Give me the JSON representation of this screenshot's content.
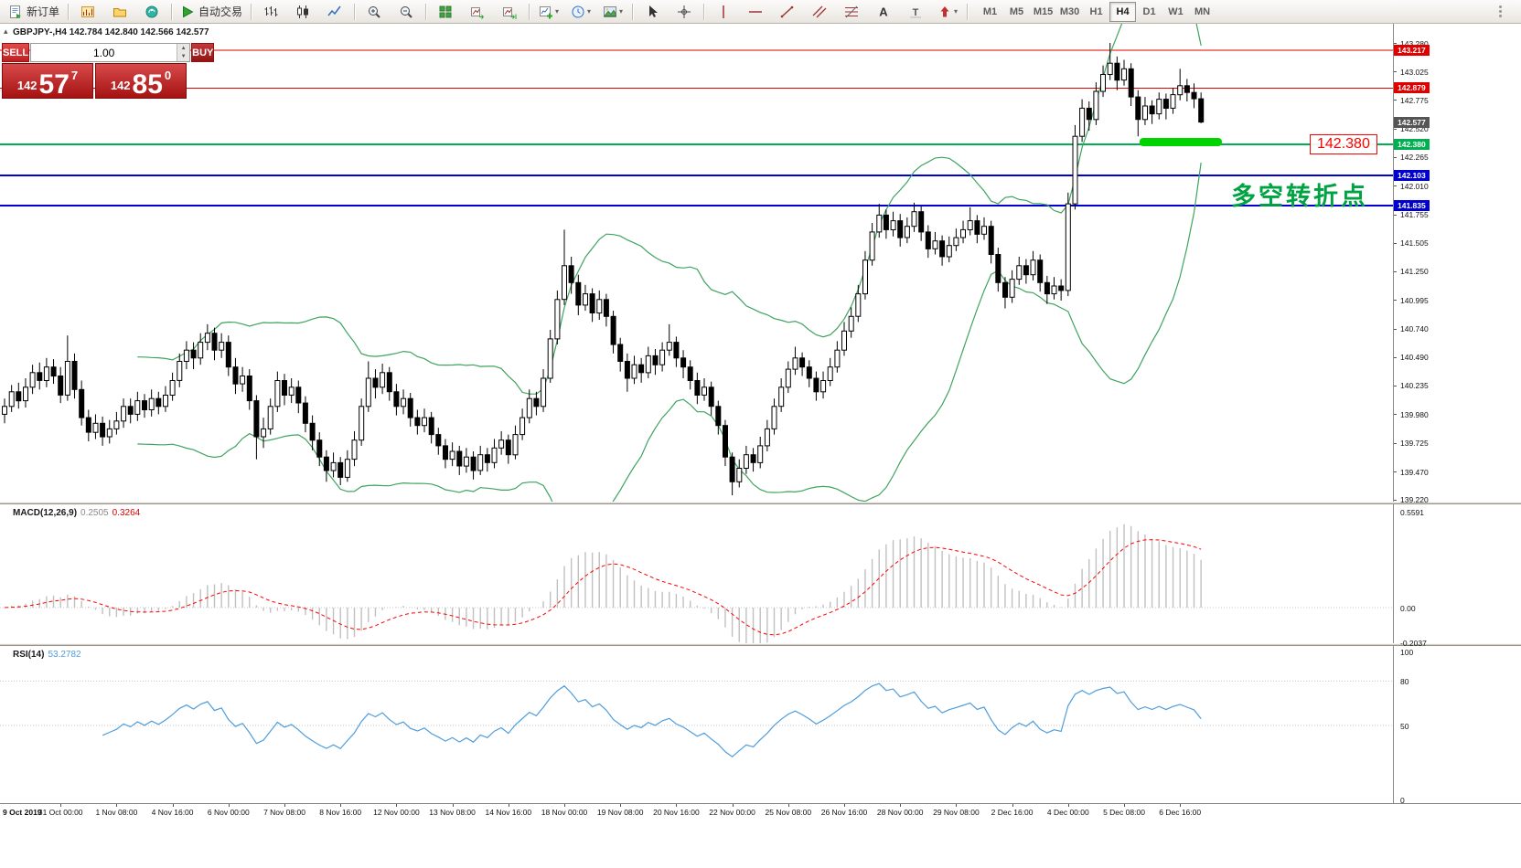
{
  "toolbar": {
    "new_order": "新订单",
    "auto_trading": "自动交易",
    "timeframes": [
      "M1",
      "M5",
      "M15",
      "M30",
      "H1",
      "H4",
      "D1",
      "W1",
      "MN"
    ],
    "active_timeframe": "H4"
  },
  "trade_panel": {
    "sell_label": "SELL",
    "buy_label": "BUY",
    "volume": "1.00",
    "sell_price": {
      "prefix": "142",
      "big": "57",
      "sup": "7"
    },
    "buy_price": {
      "prefix": "142",
      "big": "85",
      "sup": "0"
    }
  },
  "chart": {
    "header": "GBPJPY-,H4  142.784 142.840 142.566 142.577",
    "price_ticks": [
      "143.280",
      "143.025",
      "142.775",
      "142.520",
      "142.265",
      "142.010",
      "141.755",
      "141.505",
      "141.250",
      "140.995",
      "140.740",
      "140.490",
      "140.235",
      "139.980",
      "139.725",
      "139.470",
      "139.220"
    ],
    "badges": [
      {
        "label": "143.217",
        "color": "#e00000"
      },
      {
        "label": "142.879",
        "color": "#e00000"
      },
      {
        "label": "142.577",
        "color": "#555555"
      },
      {
        "label": "142.380",
        "color": "#00b050"
      },
      {
        "label": "142.103",
        "color": "#0000d0"
      },
      {
        "label": "141.835",
        "color": "#0000d0"
      }
    ],
    "hlines": [
      {
        "price": 143.217,
        "color": "#e00000",
        "width": 1
      },
      {
        "price": 142.879,
        "color": "#e00000",
        "width": 1
      },
      {
        "price": 142.38,
        "color": "#00b050",
        "width": 2
      },
      {
        "price": 142.103,
        "color": "#0000d0",
        "width": 2
      },
      {
        "price": 141.835,
        "color": "#0000d0",
        "width": 2
      }
    ],
    "price_label_box": "142.380",
    "annotation": "多空转折点",
    "colors": {
      "band": "#3fa35f",
      "bull": "#ffffff",
      "bear": "#000000",
      "outline": "#000000",
      "highlight": "#00d400",
      "annotation": "#00a342",
      "label": "#ff0000"
    }
  },
  "macd": {
    "title": "MACD(12,26,9)",
    "value1": "0.2505",
    "value2": "0.3264",
    "scale_top": "0.5591",
    "scale_zero": "0.00",
    "scale_bottom": "-0.2037",
    "hist_color": "#c0c0c0",
    "signal_color": "#ff0000"
  },
  "rsi": {
    "title": "RSI(14)",
    "value": "53.2782",
    "levels": [
      "100",
      "80",
      "50",
      "0"
    ],
    "line_color": "#4e9ddd"
  },
  "time_axis": {
    "first": "9 Oct 2019",
    "labels": [
      "31 Oct 00:00",
      "1 Nov 08:00",
      "4 Nov 16:00",
      "6 Nov 00:00",
      "7 Nov 08:00",
      "8 Nov 16:00",
      "12 Nov 00:00",
      "13 Nov 08:00",
      "14 Nov 16:00",
      "18 Nov 00:00",
      "19 Nov 08:00",
      "20 Nov 16:00",
      "22 Nov 00:00",
      "25 Nov 08:00",
      "26 Nov 16:00",
      "28 Nov 00:00",
      "29 Nov 08:00",
      "2 Dec 16:00",
      "4 Dec 00:00",
      "5 Dec 08:00",
      "6 Dec 16:00"
    ]
  },
  "chart_data": {
    "type": "candlestick",
    "symbol": "GBPJPY-",
    "timeframe": "H4",
    "ylim": [
      139.22,
      143.28
    ],
    "label_every": 8,
    "indicators": [
      "Bollinger Bands(20,2)",
      "MACD(12,26,9)",
      "RSI(14)"
    ],
    "ohlc": [
      [
        139.98,
        140.12,
        139.9,
        140.05
      ],
      [
        140.05,
        140.24,
        140.0,
        140.18
      ],
      [
        140.18,
        140.26,
        140.03,
        140.1
      ],
      [
        140.1,
        140.3,
        140.04,
        140.22
      ],
      [
        140.22,
        140.42,
        140.16,
        140.35
      ],
      [
        140.35,
        140.44,
        140.2,
        140.28
      ],
      [
        140.28,
        140.48,
        140.22,
        140.4
      ],
      [
        140.4,
        140.47,
        140.25,
        140.32
      ],
      [
        140.32,
        140.4,
        140.08,
        140.15
      ],
      [
        140.15,
        140.68,
        140.1,
        140.45
      ],
      [
        140.45,
        140.52,
        140.12,
        140.2
      ],
      [
        140.2,
        140.28,
        139.88,
        139.95
      ],
      [
        139.95,
        140.02,
        139.74,
        139.82
      ],
      [
        139.82,
        139.98,
        139.76,
        139.9
      ],
      [
        139.9,
        139.96,
        139.7,
        139.78
      ],
      [
        139.78,
        139.93,
        139.72,
        139.85
      ],
      [
        139.85,
        140.0,
        139.8,
        139.92
      ],
      [
        139.92,
        140.12,
        139.86,
        140.05
      ],
      [
        140.05,
        140.12,
        139.9,
        139.98
      ],
      [
        139.98,
        140.18,
        139.92,
        140.1
      ],
      [
        140.1,
        140.16,
        139.95,
        140.02
      ],
      [
        140.02,
        140.2,
        139.96,
        140.12
      ],
      [
        140.12,
        140.18,
        139.98,
        140.05
      ],
      [
        140.05,
        140.23,
        140.0,
        140.15
      ],
      [
        140.15,
        140.35,
        140.1,
        140.28
      ],
      [
        140.28,
        140.52,
        140.22,
        140.45
      ],
      [
        140.45,
        140.63,
        140.38,
        140.55
      ],
      [
        140.55,
        140.62,
        140.38,
        140.48
      ],
      [
        140.48,
        140.7,
        140.42,
        140.62
      ],
      [
        140.62,
        140.78,
        140.55,
        140.7
      ],
      [
        140.7,
        140.75,
        140.46,
        140.55
      ],
      [
        140.55,
        140.7,
        140.48,
        140.62
      ],
      [
        140.62,
        140.68,
        140.32,
        140.4
      ],
      [
        140.4,
        140.48,
        140.16,
        140.25
      ],
      [
        140.25,
        140.4,
        140.18,
        140.32
      ],
      [
        140.32,
        140.38,
        140.02,
        140.1
      ],
      [
        140.1,
        140.15,
        139.58,
        139.78
      ],
      [
        139.78,
        139.95,
        139.68,
        139.85
      ],
      [
        139.85,
        140.12,
        139.8,
        140.05
      ],
      [
        140.05,
        140.36,
        140.0,
        140.28
      ],
      [
        140.28,
        140.34,
        140.06,
        140.15
      ],
      [
        140.15,
        140.3,
        140.08,
        140.22
      ],
      [
        140.22,
        140.28,
        139.99,
        140.08
      ],
      [
        140.08,
        140.14,
        139.82,
        139.9
      ],
      [
        139.9,
        139.97,
        139.66,
        139.75
      ],
      [
        139.75,
        139.82,
        139.52,
        139.6
      ],
      [
        139.6,
        139.66,
        139.38,
        139.48
      ],
      [
        139.48,
        139.64,
        139.42,
        139.55
      ],
      [
        139.55,
        139.6,
        139.35,
        139.42
      ],
      [
        139.42,
        139.66,
        139.38,
        139.58
      ],
      [
        139.58,
        139.83,
        139.52,
        139.75
      ],
      [
        139.75,
        140.12,
        139.7,
        140.05
      ],
      [
        140.05,
        140.45,
        140.0,
        140.3
      ],
      [
        140.3,
        140.38,
        140.12,
        140.22
      ],
      [
        140.22,
        140.43,
        140.16,
        140.35
      ],
      [
        140.35,
        140.4,
        140.1,
        140.18
      ],
      [
        140.18,
        140.25,
        139.97,
        140.05
      ],
      [
        140.05,
        140.2,
        139.98,
        140.12
      ],
      [
        140.12,
        140.17,
        139.87,
        139.95
      ],
      [
        139.95,
        140.02,
        139.8,
        139.88
      ],
      [
        139.88,
        140.03,
        139.82,
        139.95
      ],
      [
        139.95,
        140.0,
        139.72,
        139.8
      ],
      [
        139.8,
        139.86,
        139.62,
        139.7
      ],
      [
        139.7,
        139.76,
        139.5,
        139.58
      ],
      [
        139.58,
        139.73,
        139.52,
        139.65
      ],
      [
        139.65,
        139.7,
        139.44,
        139.52
      ],
      [
        139.52,
        139.68,
        139.46,
        139.6
      ],
      [
        139.6,
        139.65,
        139.4,
        139.48
      ],
      [
        139.48,
        139.7,
        139.44,
        139.62
      ],
      [
        139.62,
        139.68,
        139.47,
        139.55
      ],
      [
        139.55,
        139.76,
        139.5,
        139.68
      ],
      [
        139.68,
        139.83,
        139.62,
        139.75
      ],
      [
        139.75,
        139.8,
        139.54,
        139.62
      ],
      [
        139.62,
        139.88,
        139.58,
        139.8
      ],
      [
        139.8,
        140.03,
        139.75,
        139.95
      ],
      [
        139.95,
        140.2,
        139.9,
        140.12
      ],
      [
        140.12,
        140.18,
        139.97,
        140.05
      ],
      [
        140.05,
        140.38,
        140.0,
        140.3
      ],
      [
        140.3,
        140.73,
        140.26,
        140.65
      ],
      [
        140.65,
        141.08,
        140.6,
        141.0
      ],
      [
        141.0,
        141.62,
        140.95,
        141.3
      ],
      [
        141.3,
        141.38,
        141.05,
        141.15
      ],
      [
        141.15,
        141.22,
        140.86,
        140.95
      ],
      [
        140.95,
        141.13,
        140.9,
        141.05
      ],
      [
        141.05,
        141.1,
        140.8,
        140.88
      ],
      [
        140.88,
        141.08,
        140.82,
        141.0
      ],
      [
        141.0,
        141.05,
        140.76,
        140.85
      ],
      [
        140.85,
        140.9,
        140.52,
        140.6
      ],
      [
        140.6,
        140.66,
        140.36,
        140.45
      ],
      [
        140.45,
        140.52,
        140.18,
        140.3
      ],
      [
        140.3,
        140.5,
        140.25,
        140.42
      ],
      [
        140.42,
        140.48,
        140.26,
        140.35
      ],
      [
        140.35,
        140.58,
        140.3,
        140.5
      ],
      [
        140.5,
        140.56,
        140.33,
        140.42
      ],
      [
        140.42,
        140.62,
        140.36,
        140.55
      ],
      [
        140.55,
        140.78,
        140.5,
        140.62
      ],
      [
        140.62,
        140.67,
        140.4,
        140.48
      ],
      [
        140.48,
        140.55,
        140.3,
        140.4
      ],
      [
        140.4,
        140.46,
        140.2,
        140.28
      ],
      [
        140.28,
        140.35,
        140.07,
        140.15
      ],
      [
        140.15,
        140.3,
        140.1,
        140.22
      ],
      [
        140.22,
        140.27,
        139.97,
        140.05
      ],
      [
        140.05,
        140.1,
        139.8,
        139.88
      ],
      [
        139.88,
        139.93,
        139.52,
        139.6
      ],
      [
        139.6,
        139.64,
        139.26,
        139.38
      ],
      [
        139.38,
        139.58,
        139.33,
        139.5
      ],
      [
        139.5,
        139.7,
        139.45,
        139.62
      ],
      [
        139.62,
        139.68,
        139.47,
        139.55
      ],
      [
        139.55,
        139.78,
        139.5,
        139.7
      ],
      [
        139.7,
        139.93,
        139.65,
        139.85
      ],
      [
        139.85,
        140.12,
        139.8,
        140.05
      ],
      [
        140.05,
        140.3,
        140.0,
        140.22
      ],
      [
        140.22,
        140.45,
        140.17,
        140.38
      ],
      [
        140.38,
        140.58,
        140.33,
        140.48
      ],
      [
        140.48,
        140.53,
        140.32,
        140.4
      ],
      [
        140.4,
        140.46,
        140.22,
        140.3
      ],
      [
        140.3,
        140.36,
        140.1,
        140.18
      ],
      [
        140.18,
        140.36,
        140.12,
        140.28
      ],
      [
        140.28,
        140.48,
        140.23,
        140.4
      ],
      [
        140.4,
        140.63,
        140.35,
        140.55
      ],
      [
        140.55,
        140.8,
        140.5,
        140.72
      ],
      [
        140.72,
        140.93,
        140.66,
        140.85
      ],
      [
        140.85,
        141.13,
        140.8,
        141.05
      ],
      [
        141.05,
        141.43,
        141.0,
        141.35
      ],
      [
        141.35,
        141.68,
        141.3,
        141.6
      ],
      [
        141.6,
        141.85,
        141.55,
        141.75
      ],
      [
        141.75,
        141.8,
        141.54,
        141.62
      ],
      [
        141.62,
        141.78,
        141.56,
        141.7
      ],
      [
        141.7,
        141.76,
        141.47,
        141.55
      ],
      [
        141.55,
        141.73,
        141.5,
        141.65
      ],
      [
        141.65,
        141.86,
        141.6,
        141.78
      ],
      [
        141.78,
        141.83,
        141.52,
        141.6
      ],
      [
        141.6,
        141.66,
        141.37,
        141.45
      ],
      [
        141.45,
        141.6,
        141.4,
        141.52
      ],
      [
        141.52,
        141.57,
        141.3,
        141.38
      ],
      [
        141.38,
        141.56,
        141.33,
        141.48
      ],
      [
        141.48,
        141.63,
        141.43,
        141.55
      ],
      [
        141.55,
        141.7,
        141.5,
        141.62
      ],
      [
        141.62,
        141.82,
        141.57,
        141.7
      ],
      [
        141.7,
        141.75,
        141.5,
        141.58
      ],
      [
        141.58,
        141.73,
        141.53,
        141.65
      ],
      [
        141.65,
        141.7,
        141.32,
        141.4
      ],
      [
        141.4,
        141.46,
        141.07,
        141.15
      ],
      [
        141.15,
        141.2,
        140.92,
        141.02
      ],
      [
        141.02,
        141.26,
        140.97,
        141.18
      ],
      [
        141.18,
        141.38,
        141.13,
        141.3
      ],
      [
        141.3,
        141.36,
        141.14,
        141.22
      ],
      [
        141.22,
        141.43,
        141.17,
        141.35
      ],
      [
        141.35,
        141.4,
        141.07,
        141.15
      ],
      [
        141.15,
        141.21,
        140.96,
        141.05
      ],
      [
        141.05,
        141.2,
        141.0,
        141.12
      ],
      [
        141.12,
        141.18,
        140.99,
        141.08
      ],
      [
        141.08,
        141.95,
        141.03,
        141.85
      ],
      [
        141.85,
        142.55,
        141.8,
        142.45
      ],
      [
        142.45,
        142.78,
        142.4,
        142.7
      ],
      [
        142.7,
        142.76,
        142.5,
        142.6
      ],
      [
        142.6,
        142.93,
        142.55,
        142.85
      ],
      [
        142.85,
        143.08,
        142.8,
        143.0
      ],
      [
        143.0,
        143.28,
        142.95,
        143.1
      ],
      [
        143.1,
        143.16,
        142.86,
        142.95
      ],
      [
        142.95,
        143.13,
        142.9,
        143.05
      ],
      [
        143.05,
        143.1,
        142.72,
        142.8
      ],
      [
        142.8,
        142.86,
        142.45,
        142.6
      ],
      [
        142.6,
        142.8,
        142.55,
        142.72
      ],
      [
        142.72,
        142.77,
        142.56,
        142.65
      ],
      [
        142.65,
        142.84,
        142.6,
        142.78
      ],
      [
        142.78,
        142.83,
        142.6,
        142.7
      ],
      [
        142.7,
        142.88,
        142.65,
        142.82
      ],
      [
        142.82,
        143.05,
        142.77,
        142.9
      ],
      [
        142.9,
        142.96,
        142.76,
        142.84
      ],
      [
        142.84,
        142.92,
        142.7,
        142.784
      ],
      [
        142.784,
        142.84,
        142.566,
        142.577
      ]
    ]
  }
}
